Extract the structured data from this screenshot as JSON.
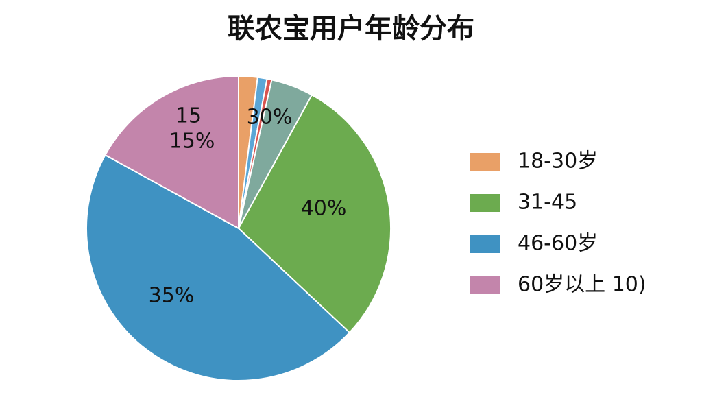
{
  "chart_data": {
    "type": "pie",
    "title": "联农宝用户年龄分布",
    "categories": [
      "18-30岁",
      null,
      null,
      null,
      "31-45",
      "46-60岁",
      "60岁以上  10)"
    ],
    "values": [
      2,
      1,
      0.5,
      4.5,
      29,
      46,
      17
    ],
    "colors": [
      "#e9a067",
      "#5ba6d6",
      "#d9534f",
      "#7fa99d",
      "#6cab4f",
      "#3f92c2",
      "#c385ab"
    ],
    "annotations": [
      "15",
      "15%",
      "30%",
      "40%",
      "35%"
    ],
    "legend": "right"
  }
}
